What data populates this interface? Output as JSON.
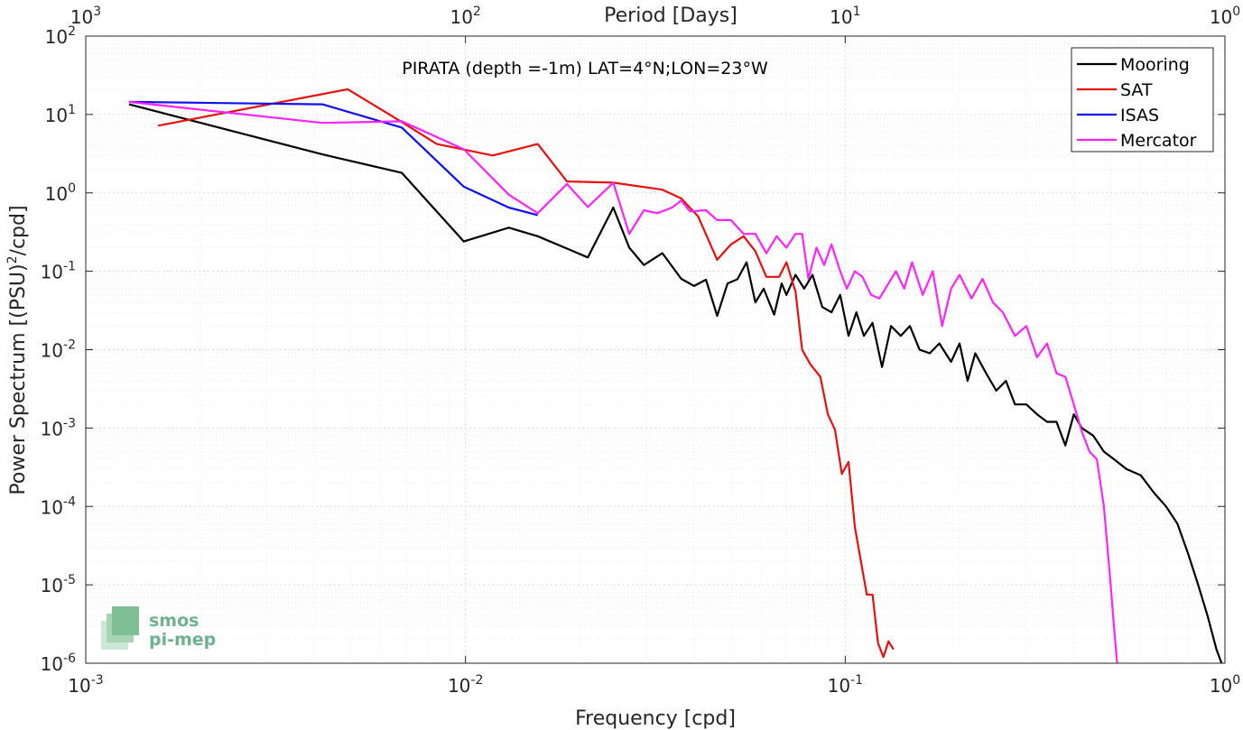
{
  "chart_data": {
    "type": "line",
    "title": "PIRATA (depth =-1m) LAT=4°N;LON=23°W",
    "xlabel": "Frequency [cpd]",
    "ylabel_main": "Power Spectrum [(PSU)",
    "ylabel_sup": "2",
    "ylabel_tail": "/cpd]",
    "top_xlabel": "Period [Days]",
    "xscale": "log",
    "yscale": "log",
    "xlim": [
      0.001,
      1
    ],
    "ylim": [
      1e-06,
      100
    ],
    "grid": true,
    "legend_position": "top-right",
    "x_ticks": [
      {
        "value": 0.001,
        "base": "10",
        "exp": "-3"
      },
      {
        "value": 0.01,
        "base": "10",
        "exp": "-2"
      },
      {
        "value": 0.1,
        "base": "10",
        "exp": "-1"
      },
      {
        "value": 1,
        "base": "10",
        "exp": "0"
      }
    ],
    "y_ticks": [
      {
        "value": 1e-06,
        "base": "10",
        "exp": "-6"
      },
      {
        "value": 1e-05,
        "base": "10",
        "exp": "-5"
      },
      {
        "value": 0.0001,
        "base": "10",
        "exp": "-4"
      },
      {
        "value": 0.001,
        "base": "10",
        "exp": "-3"
      },
      {
        "value": 0.01,
        "base": "10",
        "exp": "-2"
      },
      {
        "value": 0.1,
        "base": "10",
        "exp": "-1"
      },
      {
        "value": 1,
        "base": "10",
        "exp": "0"
      },
      {
        "value": 10,
        "base": "10",
        "exp": "1"
      },
      {
        "value": 100,
        "base": "10",
        "exp": "2"
      }
    ],
    "top_ticks": [
      {
        "period": 1000,
        "base": "10",
        "exp": "3"
      },
      {
        "period": 100,
        "base": "10",
        "exp": "2"
      },
      {
        "period": 10,
        "base": "10",
        "exp": "1"
      },
      {
        "period": 1,
        "base": "10",
        "exp": "0"
      }
    ],
    "series": [
      {
        "name": "Mooring",
        "color": "#000000",
        "points": [
          [
            0.0013,
            13.5
          ],
          [
            0.0042,
            3.1
          ],
          [
            0.0068,
            1.8
          ],
          [
            0.0099,
            0.24
          ],
          [
            0.013,
            0.36
          ],
          [
            0.0155,
            0.28
          ],
          [
            0.021,
            0.15
          ],
          [
            0.0245,
            0.65
          ],
          [
            0.027,
            0.2
          ],
          [
            0.0295,
            0.12
          ],
          [
            0.033,
            0.17
          ],
          [
            0.037,
            0.08
          ],
          [
            0.04,
            0.065
          ],
          [
            0.043,
            0.078
          ],
          [
            0.046,
            0.027
          ],
          [
            0.049,
            0.07
          ],
          [
            0.052,
            0.079
          ],
          [
            0.055,
            0.13
          ],
          [
            0.058,
            0.04
          ],
          [
            0.061,
            0.06
          ],
          [
            0.065,
            0.028
          ],
          [
            0.068,
            0.07
          ],
          [
            0.07,
            0.05
          ],
          [
            0.074,
            0.09
          ],
          [
            0.078,
            0.06
          ],
          [
            0.082,
            0.09
          ],
          [
            0.087,
            0.035
          ],
          [
            0.092,
            0.03
          ],
          [
            0.097,
            0.05
          ],
          [
            0.102,
            0.015
          ],
          [
            0.107,
            0.03
          ],
          [
            0.112,
            0.015
          ],
          [
            0.118,
            0.022
          ],
          [
            0.125,
            0.006
          ],
          [
            0.132,
            0.02
          ],
          [
            0.14,
            0.015
          ],
          [
            0.148,
            0.02
          ],
          [
            0.157,
            0.01
          ],
          [
            0.167,
            0.009
          ],
          [
            0.177,
            0.012
          ],
          [
            0.19,
            0.007
          ],
          [
            0.2,
            0.012
          ],
          [
            0.21,
            0.004
          ],
          [
            0.22,
            0.009
          ],
          [
            0.235,
            0.005
          ],
          [
            0.25,
            0.003
          ],
          [
            0.265,
            0.004
          ],
          [
            0.28,
            0.002
          ],
          [
            0.3,
            0.002
          ],
          [
            0.32,
            0.0015
          ],
          [
            0.34,
            0.0012
          ],
          [
            0.36,
            0.0012
          ],
          [
            0.38,
            0.0006
          ],
          [
            0.4,
            0.0015
          ],
          [
            0.42,
            0.001
          ],
          [
            0.45,
            0.0008
          ],
          [
            0.48,
            0.0005
          ],
          [
            0.51,
            0.0004
          ],
          [
            0.55,
            0.0003
          ],
          [
            0.6,
            0.00025
          ],
          [
            0.65,
            0.00015
          ],
          [
            0.7,
            0.0001
          ],
          [
            0.75,
            6e-05
          ],
          [
            0.8,
            2.5e-05
          ],
          [
            0.85,
            1e-05
          ],
          [
            0.9,
            4e-06
          ],
          [
            0.95,
            1.5e-06
          ],
          [
            0.98,
            1e-06
          ]
        ]
      },
      {
        "name": "SAT",
        "color": "#e8100e",
        "points": [
          [
            0.00155,
            7.2
          ],
          [
            0.0049,
            21
          ],
          [
            0.0068,
            8.0
          ],
          [
            0.0084,
            4.2
          ],
          [
            0.0118,
            3.0
          ],
          [
            0.0155,
            4.2
          ],
          [
            0.0185,
            1.4
          ],
          [
            0.0245,
            1.35
          ],
          [
            0.033,
            1.1
          ],
          [
            0.037,
            0.85
          ],
          [
            0.041,
            0.5
          ],
          [
            0.046,
            0.14
          ],
          [
            0.05,
            0.22
          ],
          [
            0.054,
            0.28
          ],
          [
            0.058,
            0.18
          ],
          [
            0.062,
            0.085
          ],
          [
            0.067,
            0.085
          ],
          [
            0.07,
            0.13
          ],
          [
            0.074,
            0.055
          ],
          [
            0.077,
            0.01
          ],
          [
            0.081,
            0.0065
          ],
          [
            0.086,
            0.0045
          ],
          [
            0.09,
            0.0015
          ],
          [
            0.094,
            0.00095
          ],
          [
            0.098,
            0.00026
          ],
          [
            0.102,
            0.00037
          ],
          [
            0.106,
            5.5e-05
          ],
          [
            0.11,
            2e-05
          ],
          [
            0.114,
            7.5e-06
          ],
          [
            0.118,
            7.5e-06
          ],
          [
            0.122,
            1.8e-06
          ],
          [
            0.126,
            1.2e-06
          ],
          [
            0.13,
            1.9e-06
          ],
          [
            0.134,
            1.5e-06
          ]
        ]
      },
      {
        "name": "ISAS",
        "color": "#1010f0",
        "points": [
          [
            0.0013,
            14.5
          ],
          [
            0.0042,
            13.5
          ],
          [
            0.0068,
            6.8
          ],
          [
            0.0099,
            1.2
          ],
          [
            0.013,
            0.65
          ],
          [
            0.0155,
            0.52
          ]
        ]
      },
      {
        "name": "Mercator",
        "color": "#ff22ff",
        "points": [
          [
            0.0013,
            14.5
          ],
          [
            0.0042,
            7.8
          ],
          [
            0.0068,
            8.2
          ],
          [
            0.0099,
            3.6
          ],
          [
            0.013,
            0.95
          ],
          [
            0.0155,
            0.55
          ],
          [
            0.0185,
            1.3
          ],
          [
            0.021,
            0.66
          ],
          [
            0.0245,
            1.35
          ],
          [
            0.027,
            0.3
          ],
          [
            0.0295,
            0.6
          ],
          [
            0.032,
            0.55
          ],
          [
            0.035,
            0.65
          ],
          [
            0.037,
            0.8
          ],
          [
            0.039,
            0.58
          ],
          [
            0.043,
            0.6
          ],
          [
            0.046,
            0.45
          ],
          [
            0.05,
            0.45
          ],
          [
            0.054,
            0.3
          ],
          [
            0.058,
            0.3
          ],
          [
            0.062,
            0.17
          ],
          [
            0.066,
            0.28
          ],
          [
            0.07,
            0.2
          ],
          [
            0.074,
            0.3
          ],
          [
            0.077,
            0.3
          ],
          [
            0.08,
            0.08
          ],
          [
            0.084,
            0.2
          ],
          [
            0.088,
            0.12
          ],
          [
            0.092,
            0.22
          ],
          [
            0.097,
            0.1
          ],
          [
            0.101,
            0.06
          ],
          [
            0.106,
            0.1
          ],
          [
            0.111,
            0.085
          ],
          [
            0.117,
            0.05
          ],
          [
            0.123,
            0.045
          ],
          [
            0.13,
            0.07
          ],
          [
            0.136,
            0.1
          ],
          [
            0.143,
            0.06
          ],
          [
            0.15,
            0.13
          ],
          [
            0.16,
            0.05
          ],
          [
            0.17,
            0.1
          ],
          [
            0.18,
            0.02
          ],
          [
            0.19,
            0.06
          ],
          [
            0.2,
            0.09
          ],
          [
            0.215,
            0.045
          ],
          [
            0.23,
            0.08
          ],
          [
            0.245,
            0.04
          ],
          [
            0.26,
            0.03
          ],
          [
            0.28,
            0.015
          ],
          [
            0.3,
            0.02
          ],
          [
            0.32,
            0.008
          ],
          [
            0.34,
            0.012
          ],
          [
            0.36,
            0.005
          ],
          [
            0.38,
            0.0045
          ],
          [
            0.4,
            0.002
          ],
          [
            0.42,
            0.0009
          ],
          [
            0.44,
            0.0005
          ],
          [
            0.46,
            0.0004
          ],
          [
            0.48,
            0.0001
          ],
          [
            0.5,
            1e-05
          ],
          [
            0.51,
            3e-06
          ],
          [
            0.52,
            1e-06
          ]
        ]
      }
    ]
  },
  "logo": {
    "line1": "smos",
    "line2": "pi-mep"
  }
}
